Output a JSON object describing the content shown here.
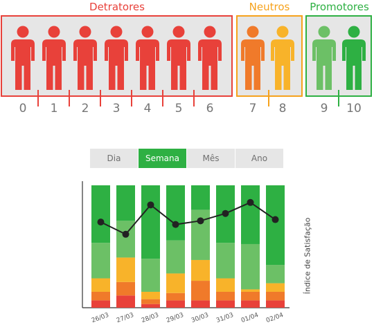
{
  "nps_scale": {
    "groups": [
      {
        "title": "Detratores",
        "color": "#e8413a",
        "scores": [
          "0",
          "1",
          "2",
          "3",
          "4",
          "5",
          "6"
        ]
      },
      {
        "title": "Neutros",
        "color": "#f6a21c",
        "scores": [
          "7",
          "8"
        ]
      },
      {
        "title": "Promotores",
        "color": "#2eb043",
        "scores": [
          "9",
          "10"
        ]
      }
    ],
    "person_colors": [
      "#e8413a",
      "#e8413a",
      "#e8413a",
      "#e8413a",
      "#e8413a",
      "#e8413a",
      "#e8413a",
      "#f07a2a",
      "#f8b32a",
      "#6cc066",
      "#2eb043"
    ]
  },
  "tabs": [
    {
      "label": "Dia",
      "active": false
    },
    {
      "label": "Semana",
      "active": true
    },
    {
      "label": "Mês",
      "active": false
    },
    {
      "label": "Ano",
      "active": false
    }
  ],
  "chart_data": {
    "type": "bar",
    "stacked": true,
    "categories": [
      "26/03",
      "27/03",
      "28/03",
      "29/03",
      "30/03",
      "31/03",
      "01/04",
      "02/04"
    ],
    "series": [
      {
        "color": "#e8413a",
        "values": [
          6,
          10,
          3,
          6,
          6,
          6,
          6,
          6
        ]
      },
      {
        "color": "#f07a2a",
        "values": [
          7,
          11,
          4,
          6,
          16,
          7,
          7,
          7
        ]
      },
      {
        "color": "#f8b32a",
        "values": [
          11,
          20,
          6,
          16,
          17,
          11,
          2,
          7
        ]
      },
      {
        "color": "#6cc066",
        "values": [
          29,
          30,
          27,
          27,
          41,
          29,
          37,
          15
        ]
      },
      {
        "color": "#2eb043",
        "values": [
          47,
          29,
          60,
          45,
          20,
          47,
          48,
          65
        ]
      }
    ],
    "line": {
      "color": "#222222",
      "values": [
        70,
        60,
        84,
        68,
        71,
        77,
        86,
        72
      ]
    },
    "ylabel": "Índice de Satisfação",
    "ylim": [
      0,
      100
    ],
    "grid": false
  },
  "colors": {
    "tab_active": "#2eb043",
    "tab_inactive": "#e6e6e6",
    "neutral_box": "#f6a21c"
  }
}
